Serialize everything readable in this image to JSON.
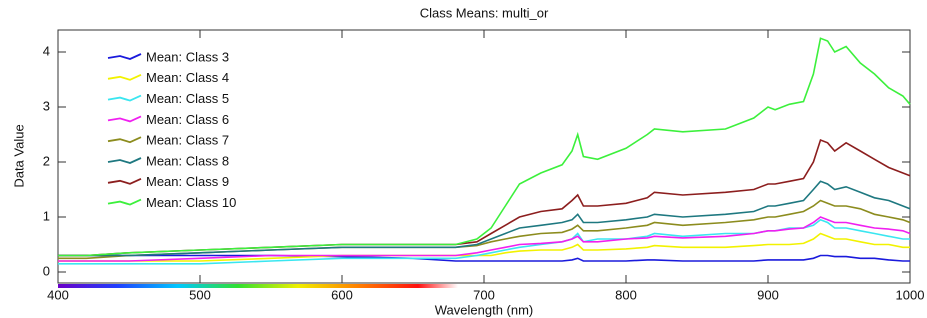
{
  "chart_data": {
    "type": "line",
    "title": "Class Means: multi_or",
    "xlabel": "Wavelength (nm)",
    "ylabel": "Data Value",
    "x": [
      400,
      420,
      450,
      500,
      550,
      600,
      650,
      680,
      695,
      705,
      715,
      725,
      740,
      755,
      762,
      766,
      770,
      780,
      800,
      815,
      820,
      840,
      870,
      890,
      900,
      905,
      915,
      925,
      932,
      937,
      942,
      947,
      955,
      965,
      975,
      985,
      995,
      1000
    ],
    "series": [
      {
        "name": "Mean: Class 3",
        "color": "#1a1adc",
        "values": [
          0.3,
          0.3,
          0.3,
          0.3,
          0.3,
          0.28,
          0.25,
          0.2,
          0.2,
          0.2,
          0.2,
          0.2,
          0.2,
          0.2,
          0.22,
          0.25,
          0.2,
          0.2,
          0.2,
          0.22,
          0.22,
          0.2,
          0.2,
          0.2,
          0.22,
          0.22,
          0.22,
          0.22,
          0.25,
          0.3,
          0.3,
          0.28,
          0.28,
          0.25,
          0.25,
          0.22,
          0.2,
          0.2
        ]
      },
      {
        "name": "Mean: Class 4",
        "color": "#f2f200",
        "values": [
          0.2,
          0.2,
          0.2,
          0.2,
          0.25,
          0.3,
          0.3,
          0.3,
          0.3,
          0.3,
          0.35,
          0.38,
          0.4,
          0.4,
          0.45,
          0.5,
          0.4,
          0.4,
          0.42,
          0.45,
          0.48,
          0.45,
          0.45,
          0.48,
          0.5,
          0.5,
          0.5,
          0.52,
          0.6,
          0.7,
          0.65,
          0.6,
          0.6,
          0.55,
          0.5,
          0.5,
          0.45,
          0.45
        ]
      },
      {
        "name": "Mean: Class 5",
        "color": "#3ae6f0",
        "values": [
          0.15,
          0.15,
          0.15,
          0.15,
          0.2,
          0.25,
          0.25,
          0.25,
          0.3,
          0.35,
          0.4,
          0.45,
          0.5,
          0.55,
          0.6,
          0.7,
          0.55,
          0.6,
          0.6,
          0.65,
          0.7,
          0.65,
          0.7,
          0.7,
          0.75,
          0.75,
          0.8,
          0.8,
          0.85,
          0.95,
          0.9,
          0.8,
          0.8,
          0.75,
          0.7,
          0.65,
          0.6,
          0.6
        ]
      },
      {
        "name": "Mean: Class 6",
        "color": "#f020f0",
        "values": [
          0.2,
          0.2,
          0.2,
          0.25,
          0.3,
          0.3,
          0.3,
          0.3,
          0.35,
          0.4,
          0.45,
          0.5,
          0.52,
          0.55,
          0.6,
          0.65,
          0.55,
          0.55,
          0.6,
          0.62,
          0.65,
          0.62,
          0.65,
          0.7,
          0.75,
          0.75,
          0.78,
          0.8,
          0.9,
          1.0,
          0.95,
          0.9,
          0.9,
          0.85,
          0.8,
          0.78,
          0.75,
          0.7
        ]
      },
      {
        "name": "Mean: Class 7",
        "color": "#8c8c1e",
        "values": [
          0.25,
          0.25,
          0.3,
          0.35,
          0.4,
          0.45,
          0.45,
          0.45,
          0.48,
          0.55,
          0.6,
          0.65,
          0.7,
          0.72,
          0.78,
          0.85,
          0.75,
          0.75,
          0.8,
          0.85,
          0.9,
          0.85,
          0.9,
          0.95,
          1.0,
          1.0,
          1.05,
          1.1,
          1.2,
          1.3,
          1.25,
          1.2,
          1.2,
          1.15,
          1.05,
          1.0,
          0.95,
          0.9
        ]
      },
      {
        "name": "Mean: Class 8",
        "color": "#1e7880",
        "values": [
          0.3,
          0.3,
          0.3,
          0.35,
          0.4,
          0.45,
          0.45,
          0.45,
          0.5,
          0.6,
          0.7,
          0.8,
          0.85,
          0.9,
          0.95,
          1.05,
          0.9,
          0.9,
          0.95,
          1.0,
          1.05,
          1.0,
          1.05,
          1.1,
          1.2,
          1.2,
          1.25,
          1.3,
          1.5,
          1.65,
          1.6,
          1.5,
          1.55,
          1.45,
          1.35,
          1.3,
          1.2,
          1.15
        ]
      },
      {
        "name": "Mean: Class 9",
        "color": "#8c1e1e",
        "values": [
          0.3,
          0.3,
          0.35,
          0.4,
          0.45,
          0.5,
          0.5,
          0.5,
          0.55,
          0.7,
          0.85,
          1.0,
          1.1,
          1.15,
          1.3,
          1.4,
          1.2,
          1.2,
          1.25,
          1.35,
          1.45,
          1.4,
          1.45,
          1.5,
          1.6,
          1.6,
          1.65,
          1.7,
          2.0,
          2.4,
          2.35,
          2.2,
          2.35,
          2.2,
          2.05,
          1.9,
          1.8,
          1.75
        ]
      },
      {
        "name": "Mean: Class 10",
        "color": "#3cf03c",
        "values": [
          0.3,
          0.3,
          0.35,
          0.4,
          0.45,
          0.5,
          0.5,
          0.5,
          0.6,
          0.8,
          1.2,
          1.6,
          1.8,
          1.95,
          2.2,
          2.5,
          2.1,
          2.05,
          2.25,
          2.5,
          2.6,
          2.55,
          2.6,
          2.8,
          3.0,
          2.95,
          3.05,
          3.1,
          3.6,
          4.25,
          4.2,
          4.0,
          4.1,
          3.8,
          3.6,
          3.35,
          3.2,
          3.05
        ]
      }
    ],
    "xlim": [
      400,
      1000
    ],
    "xticks": [
      400,
      500,
      600,
      700,
      800,
      900,
      1000
    ],
    "ylim": [
      -0.2,
      4.4
    ],
    "yticks": [
      0,
      1,
      2,
      3,
      4
    ],
    "legend": "upper-left"
  }
}
